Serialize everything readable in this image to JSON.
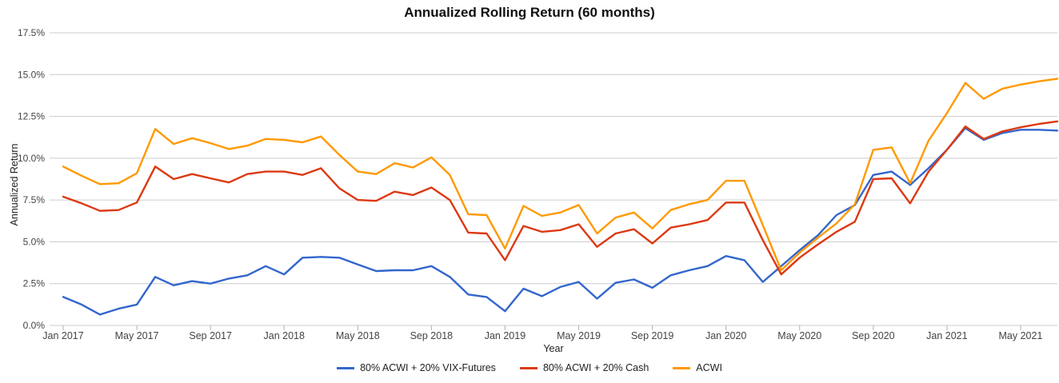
{
  "chart": {
    "title": "Annualized Rolling Return (60 months)",
    "x_axis_title": "Year",
    "y_axis_title": "Annualized Return"
  },
  "colors": {
    "grid": "#cccccc",
    "tick": "#b0b0b0",
    "axis_text": "#444444",
    "blue": "#3366cc",
    "red": "#dc3912",
    "orange": "#ff9900"
  },
  "legend": {
    "items": [
      {
        "label": "80% ACWI + 20% VIX-Futures",
        "color": "#3366cc"
      },
      {
        "label": "80% ACWI + 20% Cash",
        "color": "#dc3912"
      },
      {
        "label": "ACWI",
        "color": "#ff9900"
      }
    ]
  },
  "chart_data": {
    "type": "line",
    "title": "Annualized Rolling Return (60 months)",
    "xlabel": "Year",
    "ylabel": "Annualized Return",
    "ylim": [
      0,
      17.5
    ],
    "grid": "horizontal-only",
    "legend_position": "bottom",
    "y_ticks": [
      "0.0%",
      "2.5%",
      "5.0%",
      "7.5%",
      "10.0%",
      "12.5%",
      "15.0%",
      "17.5%"
    ],
    "x_tick_labels": [
      "Jan 2017",
      "May 2017",
      "Sep 2017",
      "Jan 2018",
      "May 2018",
      "Sep 2018",
      "Jan 2019",
      "May 2019",
      "Sep 2019",
      "Jan 2020",
      "May 2020",
      "Sep 2020",
      "Jan 2021",
      "May 2021"
    ],
    "x": [
      "Jan 2017",
      "Feb 2017",
      "Mar 2017",
      "Apr 2017",
      "May 2017",
      "Jun 2017",
      "Jul 2017",
      "Aug 2017",
      "Sep 2017",
      "Oct 2017",
      "Nov 2017",
      "Dec 2017",
      "Jan 2018",
      "Feb 2018",
      "Mar 2018",
      "Apr 2018",
      "May 2018",
      "Jun 2018",
      "Jul 2018",
      "Aug 2018",
      "Sep 2018",
      "Oct 2018",
      "Nov 2018",
      "Dec 2018",
      "Jan 2019",
      "Feb 2019",
      "Mar 2019",
      "Apr 2019",
      "May 2019",
      "Jun 2019",
      "Jul 2019",
      "Aug 2019",
      "Sep 2019",
      "Oct 2019",
      "Nov 2019",
      "Dec 2019",
      "Jan 2020",
      "Feb 2020",
      "Mar 2020",
      "Apr 2020",
      "May 2020",
      "Jun 2020",
      "Jul 2020",
      "Aug 2020",
      "Sep 2020",
      "Oct 2020",
      "Nov 2020",
      "Dec 2020",
      "Jan 2021",
      "Feb 2021",
      "Mar 2021",
      "Apr 2021",
      "May 2021",
      "Jun 2021",
      "Jul 2021"
    ],
    "series": [
      {
        "name": "80% ACWI + 20% VIX-Futures",
        "color": "#3366cc",
        "values": [
          1.7,
          1.25,
          0.65,
          1.0,
          1.25,
          2.9,
          2.4,
          2.65,
          2.5,
          2.8,
          3.0,
          3.55,
          3.05,
          4.05,
          4.1,
          4.05,
          3.65,
          3.25,
          3.3,
          3.3,
          3.55,
          2.9,
          1.85,
          1.7,
          0.85,
          2.2,
          1.75,
          2.3,
          2.6,
          1.6,
          2.55,
          2.75,
          2.25,
          3.0,
          3.3,
          3.55,
          4.15,
          3.9,
          2.6,
          3.55,
          4.5,
          5.4,
          6.6,
          7.2,
          9.0,
          9.2,
          8.4,
          9.4,
          10.5,
          11.8,
          11.1,
          11.5,
          11.7,
          11.7,
          11.65
        ]
      },
      {
        "name": "80% ACWI + 20% Cash",
        "color": "#dc3912",
        "values": [
          7.7,
          7.3,
          6.85,
          6.9,
          7.35,
          9.5,
          8.75,
          9.05,
          8.8,
          8.55,
          9.05,
          9.2,
          9.2,
          9.0,
          9.4,
          8.2,
          7.5,
          7.45,
          8.0,
          7.8,
          8.25,
          7.5,
          5.55,
          5.5,
          3.9,
          5.95,
          5.6,
          5.7,
          6.05,
          4.7,
          5.5,
          5.75,
          4.9,
          5.85,
          6.05,
          6.3,
          7.35,
          7.35,
          5.1,
          3.05,
          4.05,
          4.85,
          5.6,
          6.2,
          8.75,
          8.8,
          7.3,
          9.2,
          10.5,
          11.9,
          11.15,
          11.6,
          11.85,
          12.05,
          12.2
        ]
      },
      {
        "name": "ACWI",
        "color": "#ff9900",
        "values": [
          9.5,
          8.95,
          8.45,
          8.5,
          9.1,
          11.75,
          10.85,
          11.2,
          10.9,
          10.55,
          10.75,
          11.15,
          11.1,
          10.95,
          11.3,
          10.2,
          9.2,
          9.05,
          9.7,
          9.45,
          10.05,
          9.0,
          6.65,
          6.6,
          4.6,
          7.15,
          6.55,
          6.75,
          7.2,
          5.5,
          6.45,
          6.75,
          5.8,
          6.9,
          7.25,
          7.5,
          8.65,
          8.65,
          6.0,
          3.3,
          4.35,
          5.25,
          6.1,
          7.25,
          10.5,
          10.65,
          8.5,
          11.05,
          12.7,
          14.5,
          13.55,
          14.15,
          14.4,
          14.6,
          14.75
        ]
      }
    ]
  }
}
